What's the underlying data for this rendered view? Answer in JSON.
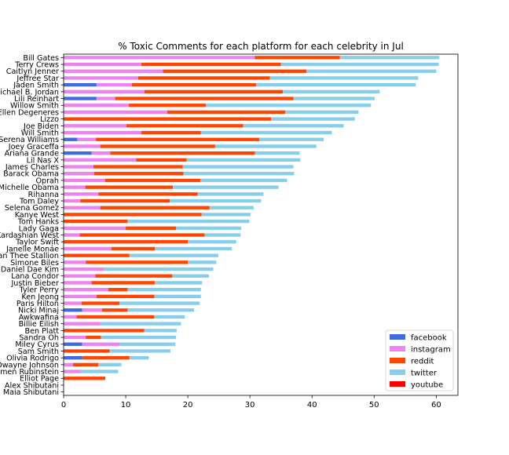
{
  "chart_data": {
    "type": "bar",
    "orientation": "horizontal",
    "stacked": true,
    "title": "% Toxic Comments for each platform for each celebrity in Jul",
    "xlabel": "",
    "ylabel": "",
    "xlim": [
      0,
      63.5
    ],
    "xticks": [
      0,
      10,
      20,
      30,
      40,
      50,
      60
    ],
    "grid": false,
    "legend_position": "lower-right",
    "categories": [
      "Bill Gates",
      "Terry Crews",
      "Caitlyn Jenner",
      "Jeffree Star",
      "Jaden Smith",
      "Michael B. Jordan",
      "Lili Reinhart",
      "Willow Smith",
      "Ellen Degeneres",
      "Lizzo",
      "Joe Biden",
      "Will Smith",
      "Serena Williams",
      "Joey Graceffa",
      "Ariana Grande",
      "Lil Nas X",
      "James Charles",
      "Barack Obama",
      "Oprah",
      "Michelle Obama",
      "Rihanna",
      "Tom Daley",
      "Selena Gomez",
      "Kanye West",
      "Tom Hanks",
      "Lady Gaga",
      "Kim Kardashian West",
      "Taylor Swift",
      "Janelle Monáe",
      "Megan Thee Stallion",
      "Simone Biles",
      "Daniel Dae Kim",
      "Lana Condor",
      "Justin Bieber",
      "Tyler Perry",
      "Ken Jeong",
      "Paris Hilton",
      "Nicki Minaj",
      "Awkwafina",
      "Billie Eilish",
      "Ben Platt",
      "Sandra Oh",
      "Miley Cyrus",
      "Sam Smith",
      "Olivia Rodrigo",
      "Dwayne Johnson",
      "Amen Rubinstein",
      "Elliot Page",
      "Alex Shibutani",
      "Maia Shibutani"
    ],
    "series": [
      {
        "name": "facebook",
        "color": "#4169e1",
        "values": [
          0,
          0,
          0,
          0,
          5.3,
          0,
          5.3,
          0,
          0,
          0,
          0,
          0,
          2.2,
          0,
          4.5,
          0,
          0,
          0,
          0,
          0,
          0,
          0,
          0,
          0,
          0,
          0,
          0,
          0,
          0,
          0,
          0,
          0,
          0,
          0,
          0,
          0,
          0,
          3.0,
          0,
          0,
          0,
          0,
          3.0,
          0,
          3.0,
          0,
          0,
          0,
          0,
          0
        ]
      },
      {
        "name": "instagram",
        "color": "#ee82ee",
        "values": [
          30.8,
          12.5,
          16.0,
          12.0,
          5.7,
          13.0,
          3.0,
          10.5,
          16.7,
          0,
          10.1,
          12.5,
          3.0,
          5.9,
          3.0,
          11.7,
          4.8,
          4.9,
          6.7,
          3.5,
          5.6,
          2.7,
          5.9,
          0,
          0,
          10.0,
          2.6,
          0,
          7.7,
          0,
          3.6,
          6.5,
          5.1,
          4.5,
          7.2,
          5.3,
          2.9,
          3.2,
          2.1,
          5.9,
          0,
          3.6,
          6.0,
          0,
          0,
          1.5,
          2.7,
          0,
          0,
          0
        ]
      },
      {
        "name": "reddit",
        "color": "#ff4500",
        "values": [
          13.7,
          22.5,
          23.1,
          21.2,
          20.0,
          22.3,
          28.7,
          12.4,
          19.0,
          33.4,
          18.8,
          9.6,
          26.3,
          18.5,
          23.3,
          8.1,
          14.4,
          14.4,
          15.3,
          14.1,
          16.0,
          14.4,
          17.6,
          22.2,
          10.3,
          8.1,
          20.1,
          20.0,
          7.0,
          10.6,
          16.4,
          0,
          12.4,
          10.2,
          3.1,
          9.3,
          6.1,
          4.1,
          12.5,
          0,
          13.0,
          2.4,
          0,
          7.4,
          7.6,
          4.1,
          0,
          6.7,
          0,
          0
        ]
      },
      {
        "name": "twitter",
        "color": "#87ceeb",
        "values": [
          16.0,
          25.4,
          20.9,
          23.9,
          25.7,
          15.6,
          13.1,
          26.6,
          11.8,
          13.5,
          16.2,
          21.1,
          10.4,
          16.3,
          7.2,
          18.3,
          17.8,
          17.8,
          14.0,
          17.0,
          10.6,
          14.7,
          7.1,
          7.9,
          19.6,
          10.5,
          5.8,
          7.8,
          12.4,
          14.3,
          4.6,
          17.6,
          5.9,
          7.6,
          11.8,
          7.5,
          12.9,
          10.7,
          4.9,
          13.0,
          5.2,
          12.1,
          9.0,
          9.8,
          3.1,
          3.7,
          6.1,
          0,
          0,
          0
        ]
      },
      {
        "name": "youtube",
        "color": "#ff0000",
        "values": [
          0,
          0,
          0,
          0,
          0,
          0,
          0,
          0,
          0,
          0,
          0,
          0,
          0,
          0,
          0,
          0,
          0,
          0,
          0,
          0,
          0,
          0,
          0,
          0,
          0,
          0,
          0,
          0,
          0,
          0,
          0,
          0,
          0,
          0,
          0,
          0,
          0,
          0,
          0,
          0,
          0,
          0,
          0,
          0,
          0,
          0,
          0,
          0,
          0,
          0
        ]
      }
    ]
  }
}
